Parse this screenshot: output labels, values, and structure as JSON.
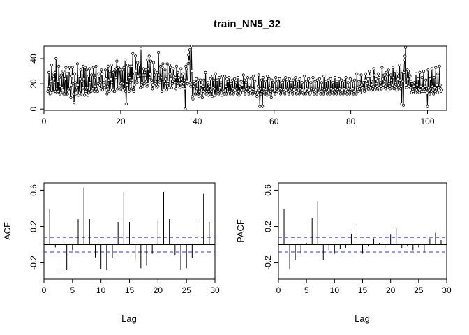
{
  "chart_data": [
    {
      "type": "line",
      "title": "train_NN5_32",
      "xlabel": "",
      "ylabel": "",
      "xlim": [
        0,
        105
      ],
      "ylim": [
        -1,
        50
      ],
      "xticks": [
        0,
        20,
        40,
        60,
        80,
        100
      ],
      "yticks": [
        0,
        20,
        40
      ],
      "x_start": 1,
      "x_step": 0.142857,
      "y": [
        14,
        16,
        29,
        18,
        12,
        13,
        22,
        35,
        27,
        14,
        13,
        24,
        21,
        29,
        14,
        40,
        16,
        13,
        22,
        14,
        34,
        25,
        12,
        18,
        13,
        27,
        17,
        15,
        30,
        12,
        24,
        12,
        24,
        33,
        12,
        28,
        12,
        15,
        16,
        30,
        33,
        16,
        9,
        19,
        26,
        33,
        20,
        12,
        5,
        28,
        21,
        12,
        13,
        17,
        36,
        19,
        11,
        26,
        13,
        24,
        31,
        12,
        22,
        16,
        17,
        34,
        24,
        11,
        33,
        14,
        17,
        31,
        17,
        11,
        26,
        13,
        32,
        21,
        14,
        14,
        27,
        15,
        16,
        33,
        27,
        14,
        18,
        25,
        34,
        16,
        13,
        14,
        20,
        28,
        26,
        19,
        21,
        16,
        31,
        28,
        15,
        21,
        21,
        19,
        17,
        31,
        24,
        15,
        12,
        18,
        34,
        23,
        14,
        30,
        15,
        24,
        35,
        21,
        30,
        15,
        29,
        14,
        14,
        31,
        25,
        32,
        38,
        16,
        35,
        33,
        17,
        32,
        31,
        20,
        15,
        21,
        31,
        15,
        20,
        33,
        16,
        39,
        14,
        4,
        22,
        19,
        35,
        27,
        14,
        25,
        34,
        21,
        16,
        34,
        23,
        44,
        15,
        14,
        19,
        28,
        42,
        30,
        22,
        21,
        37,
        26,
        24,
        35,
        27,
        17,
        48,
        19,
        21,
        18,
        27,
        32,
        20,
        29,
        27,
        31,
        22,
        18,
        39,
        20,
        32,
        42,
        25,
        28,
        38,
        23,
        21,
        16,
        19,
        37,
        31,
        27,
        20,
        22,
        19,
        17,
        29,
        18,
        45,
        27,
        22,
        21,
        34,
        25,
        14,
        33,
        36,
        22,
        15,
        22,
        31,
        24,
        20,
        15,
        36,
        20,
        22,
        17,
        35,
        28,
        33,
        24,
        17,
        20,
        22,
        32,
        26,
        21,
        21,
        25,
        16,
        34,
        21,
        29,
        20,
        25,
        21,
        17,
        20,
        32,
        24,
        21,
        18,
        28,
        20,
        23,
        16,
        0,
        34,
        32,
        22,
        20,
        36,
        43,
        38,
        47,
        21,
        18,
        50,
        30,
        10,
        8,
        18,
        22,
        20,
        12,
        21,
        24,
        16,
        12,
        11,
        23,
        10,
        14,
        11,
        23,
        19,
        15,
        9,
        18,
        14,
        23,
        16,
        13,
        29,
        12,
        14,
        16,
        21,
        11,
        14,
        18,
        12,
        24,
        15,
        14,
        10,
        26,
        17,
        23,
        16,
        11,
        28,
        12,
        14,
        23,
        13,
        14,
        12,
        25,
        17,
        13,
        21,
        13,
        11,
        26,
        15,
        14,
        12,
        26,
        15,
        18,
        12,
        24,
        16,
        22,
        13,
        25,
        14,
        12,
        20,
        14,
        13,
        23,
        16,
        12,
        14,
        24,
        15,
        13,
        21,
        16,
        12,
        25,
        14,
        11,
        18,
        14,
        13,
        22,
        15,
        19,
        13,
        27,
        15,
        23,
        12,
        14,
        21,
        16,
        13,
        25,
        14,
        12,
        19,
        15,
        13,
        24,
        14,
        16,
        12,
        26,
        15,
        14,
        22,
        13,
        15,
        12,
        10,
        13,
        18,
        27,
        15,
        2,
        16,
        12,
        23,
        14,
        2,
        25,
        16,
        13,
        12,
        22,
        15,
        14,
        11,
        26,
        14,
        13,
        24,
        17,
        12,
        14,
        9,
        23,
        16,
        13,
        21,
        14,
        15,
        12,
        25,
        16,
        13,
        14,
        22,
        15,
        13,
        24,
        16,
        12,
        15,
        21,
        14,
        13,
        23,
        15,
        14,
        12,
        25,
        15,
        13,
        22,
        16,
        14,
        12,
        24,
        15,
        13,
        21,
        16,
        14,
        12,
        23,
        15,
        13,
        18,
        25,
        14,
        12,
        16,
        22,
        13,
        15,
        12,
        24,
        16,
        14,
        13,
        21,
        15,
        13,
        12,
        26,
        14,
        15,
        12,
        22,
        16,
        13,
        14,
        24,
        15,
        12,
        13,
        21,
        16,
        14,
        13,
        25,
        15,
        12,
        14,
        22,
        15,
        13,
        12,
        23,
        16,
        14,
        13,
        24,
        15,
        12,
        14,
        21,
        16,
        13,
        12,
        26,
        15,
        14,
        13,
        22,
        16,
        12,
        14,
        23,
        15,
        13,
        12,
        24,
        16,
        14,
        13,
        21,
        15,
        12,
        14,
        25,
        16,
        13,
        12,
        22,
        15,
        14,
        13,
        24,
        16,
        12,
        14,
        23,
        15,
        13,
        12,
        22,
        16,
        14,
        13,
        25,
        15,
        12,
        14,
        21,
        16,
        13,
        12,
        24,
        15,
        14,
        13,
        22,
        16,
        12,
        14,
        23,
        15,
        13,
        12,
        28,
        17,
        15,
        14,
        22,
        16,
        13,
        18,
        27,
        19,
        15,
        17,
        21,
        16,
        14,
        23,
        28,
        17,
        15,
        20,
        24,
        16,
        18,
        30,
        26,
        17,
        15,
        22,
        19,
        16,
        18,
        32,
        27,
        15,
        17,
        24,
        20,
        18,
        16,
        28,
        25,
        17,
        15,
        21,
        18,
        16,
        33,
        24,
        17,
        19,
        27,
        22,
        18,
        16,
        29,
        26,
        17,
        15,
        31,
        20,
        18,
        16,
        27,
        23,
        17,
        19,
        33,
        25,
        16,
        18,
        30,
        21,
        17,
        15,
        28,
        24,
        19,
        17,
        35,
        23,
        16,
        18,
        4,
        30,
        22,
        3,
        29,
        39,
        42,
        49,
        19,
        17,
        31,
        24,
        30,
        18,
        27,
        26,
        17,
        22,
        13,
        20,
        15,
        14,
        18,
        21,
        16,
        13,
        28,
        15,
        19,
        14,
        24,
        16,
        13,
        29,
        15,
        18,
        14,
        25,
        17,
        14,
        30,
        15,
        18,
        14,
        23,
        16,
        13,
        2,
        31,
        17,
        15,
        12,
        24,
        16,
        14,
        32,
        18,
        15,
        12,
        25,
        17,
        14,
        33,
        16,
        19,
        13,
        28,
        17,
        15,
        34,
        19,
        16,
        14,
        15
      ],
      "color": "#000000"
    },
    {
      "type": "bar",
      "xlabel": "Lag",
      "ylabel": "ACF",
      "xlim": [
        0,
        30
      ],
      "ylim": [
        -0.38,
        0.68
      ],
      "xticks": [
        0,
        5,
        10,
        15,
        20,
        25,
        30
      ],
      "yticks": [
        -0.2,
        0.2,
        0.6
      ],
      "lags": [
        1,
        2,
        3,
        4,
        5,
        6,
        7,
        8,
        9,
        10,
        11,
        12,
        13,
        14,
        15,
        16,
        17,
        18,
        19,
        20,
        21,
        22,
        23,
        24,
        25,
        26,
        27,
        28,
        29
      ],
      "values": [
        0.39,
        -0.03,
        -0.28,
        -0.28,
        -0.06,
        0.28,
        0.63,
        0.28,
        -0.14,
        -0.27,
        -0.28,
        -0.15,
        0.25,
        0.58,
        0.25,
        -0.17,
        -0.26,
        -0.23,
        -0.1,
        0.27,
        0.58,
        0.28,
        -0.12,
        -0.28,
        -0.26,
        -0.15,
        0.24,
        0.56,
        0.25
      ],
      "conf_limit": 0.08,
      "conf_color": "#3333cc"
    },
    {
      "type": "bar",
      "xlabel": "Lag",
      "ylabel": "PACF",
      "xlim": [
        0,
        30
      ],
      "ylim": [
        -0.38,
        0.68
      ],
      "xticks": [
        0,
        5,
        10,
        15,
        20,
        25,
        30
      ],
      "yticks": [
        -0.2,
        0.2,
        0.6
      ],
      "lags": [
        1,
        2,
        3,
        4,
        5,
        6,
        7,
        8,
        9,
        10,
        11,
        12,
        13,
        14,
        15,
        16,
        17,
        18,
        19,
        20,
        21,
        22,
        23,
        24,
        25,
        26,
        27,
        28,
        29
      ],
      "values": [
        0.39,
        -0.27,
        -0.17,
        -0.1,
        0.02,
        0.29,
        0.48,
        -0.17,
        -0.06,
        -0.1,
        -0.05,
        -0.04,
        0.12,
        0.23,
        -0.1,
        -0.02,
        0.07,
        0.02,
        -0.04,
        0.11,
        0.18,
        -0.04,
        -0.02,
        -0.06,
        -0.03,
        -0.08,
        0.07,
        0.13,
        0.05
      ],
      "conf_limit": 0.08,
      "conf_color": "#3333cc"
    }
  ]
}
